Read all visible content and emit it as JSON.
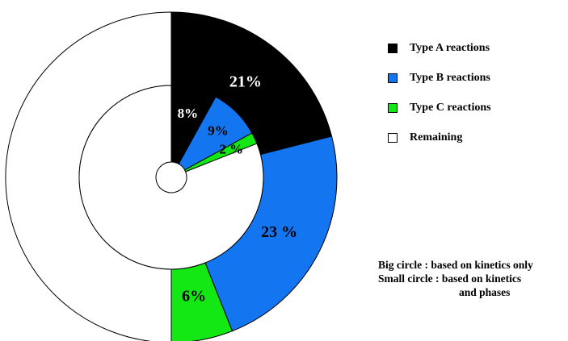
{
  "chart_data": {
    "type": "pie",
    "subtype": "nested-donut",
    "legend": {
      "placement": "right",
      "items": [
        {
          "label": "Type A reactions",
          "color": "#000000"
        },
        {
          "label": "Type B reactions",
          "color": "#1475f0"
        },
        {
          "label": "Type C reactions",
          "color": "#14e814"
        },
        {
          "label": "Remaining",
          "color": "#ffffff"
        }
      ]
    },
    "rings": [
      {
        "name": "Big circle",
        "slices": [
          {
            "category": "Type A reactions",
            "value": 21,
            "label": "21%",
            "color": "#000000"
          },
          {
            "category": "Type B reactions",
            "value": 23,
            "label": "23 %",
            "color": "#1475f0"
          },
          {
            "category": "Type C reactions",
            "value": 6,
            "label": "6%",
            "color": "#14e814"
          },
          {
            "category": "Remaining",
            "value": 50,
            "label": "",
            "color": "#ffffff"
          }
        ]
      },
      {
        "name": "Small circle",
        "slices": [
          {
            "category": "Type A reactions",
            "value": 8,
            "label": "8%",
            "color": "#000000"
          },
          {
            "category": "Type B reactions",
            "value": 9,
            "label": "9%",
            "color": "#1475f0"
          },
          {
            "category": "Type C reactions",
            "value": 2,
            "label": "2 %",
            "color": "#14e814"
          },
          {
            "category": "Remaining",
            "value": 81,
            "label": "",
            "color": "#ffffff"
          }
        ]
      }
    ],
    "notes": [
      "Big circle : based on kinetics only",
      "Small circle : based on kinetics",
      "and phases"
    ]
  }
}
